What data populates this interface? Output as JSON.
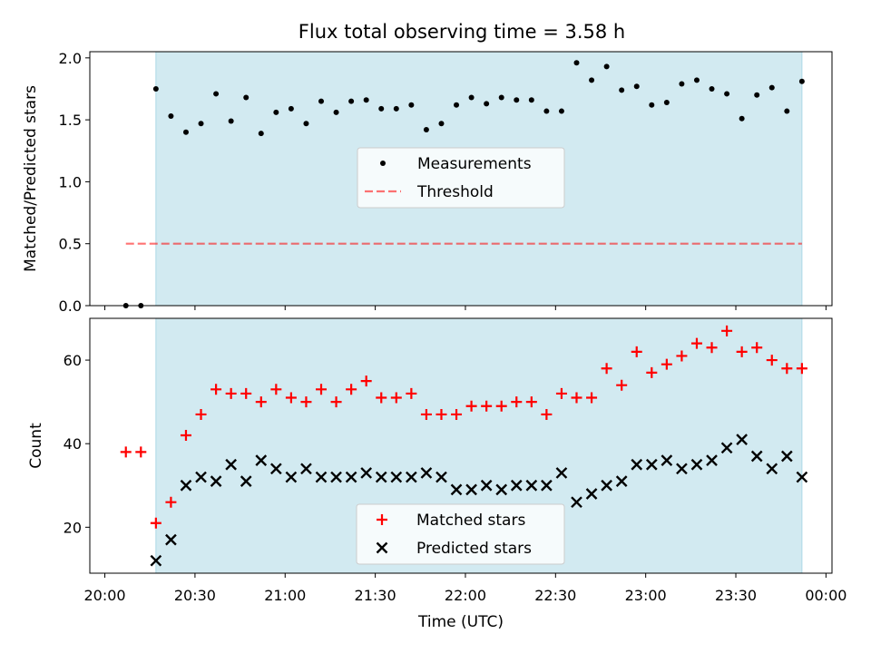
{
  "title": "Flux total observing time = 3.58 h",
  "colors": {
    "shade": "#add8e6",
    "matched": "#ff0000",
    "predicted": "#000000",
    "threshold": "#ff0000",
    "measurements": "#000000"
  },
  "chart_data": [
    {
      "type": "scatter",
      "ylabel": "Matched/Predicted stars",
      "ylim": [
        0,
        2.05
      ],
      "yticks": [
        0.0,
        0.5,
        1.0,
        1.5,
        2.0
      ],
      "ytick_labels": [
        "0.0",
        "0.5",
        "1.0",
        "1.5",
        "2.0"
      ],
      "shaded_span": [
        "20:17",
        "23:52"
      ],
      "legend": {
        "placement": "center",
        "entries": [
          "Measurements",
          "Threshold"
        ]
      },
      "threshold": {
        "name": "Threshold",
        "y": 0.5,
        "x_start": "20:07",
        "x_end": "23:52"
      },
      "series": [
        {
          "name": "Measurements",
          "x": [
            "20:07",
            "20:12",
            "20:17",
            "20:22",
            "20:27",
            "20:32",
            "20:37",
            "20:42",
            "20:47",
            "20:52",
            "20:57",
            "21:02",
            "21:07",
            "21:12",
            "21:17",
            "21:22",
            "21:27",
            "21:32",
            "21:37",
            "21:42",
            "21:47",
            "21:52",
            "21:57",
            "22:02",
            "22:07",
            "22:12",
            "22:17",
            "22:22",
            "22:27",
            "22:32",
            "22:37",
            "22:42",
            "22:47",
            "22:52",
            "22:57",
            "23:02",
            "23:07",
            "23:12",
            "23:17",
            "23:22",
            "23:27",
            "23:32",
            "23:37",
            "23:42",
            "23:47",
            "23:52"
          ],
          "y": [
            0.0,
            0.0,
            1.75,
            1.53,
            1.4,
            1.47,
            1.71,
            1.49,
            1.68,
            1.39,
            1.56,
            1.59,
            1.47,
            1.65,
            1.56,
            1.65,
            1.66,
            1.59,
            1.59,
            1.62,
            1.42,
            1.47,
            1.62,
            1.68,
            1.63,
            1.68,
            1.66,
            1.66,
            1.57,
            1.57,
            1.96,
            1.82,
            1.93,
            1.74,
            1.77,
            1.62,
            1.64,
            1.79,
            1.82,
            1.75,
            1.71,
            1.51,
            1.7,
            1.76,
            1.57,
            1.81
          ]
        }
      ]
    },
    {
      "type": "scatter",
      "title": "",
      "xlabel": "Time (UTC)",
      "ylabel": "Count",
      "ylim": [
        9,
        70
      ],
      "yticks": [
        20,
        40,
        60
      ],
      "ytick_labels": [
        "20",
        "40",
        "60"
      ],
      "xlim": [
        "19:55",
        "00:02"
      ],
      "xticks": [
        "20:00",
        "20:30",
        "21:00",
        "21:30",
        "22:00",
        "22:30",
        "23:00",
        "23:30",
        "00:00"
      ],
      "xtick_labels": [
        "20:00",
        "20:30",
        "21:00",
        "21:30",
        "22:00",
        "22:30",
        "23:00",
        "23:30",
        "00:00"
      ],
      "shaded_span": [
        "20:17",
        "23:52"
      ],
      "legend": {
        "placement": "lower center",
        "entries": [
          "Matched stars",
          "Predicted stars"
        ]
      },
      "series": [
        {
          "name": "Matched stars",
          "marker": "+",
          "x": [
            "20:07",
            "20:12",
            "20:17",
            "20:22",
            "20:27",
            "20:32",
            "20:37",
            "20:42",
            "20:47",
            "20:52",
            "20:57",
            "21:02",
            "21:07",
            "21:12",
            "21:17",
            "21:22",
            "21:27",
            "21:32",
            "21:37",
            "21:42",
            "21:47",
            "21:52",
            "21:57",
            "22:02",
            "22:07",
            "22:12",
            "22:17",
            "22:22",
            "22:27",
            "22:32",
            "22:37",
            "22:42",
            "22:47",
            "22:52",
            "22:57",
            "23:02",
            "23:07",
            "23:12",
            "23:17",
            "23:22",
            "23:27",
            "23:32",
            "23:37",
            "23:42",
            "23:47",
            "23:52"
          ],
          "y": [
            38,
            38,
            21,
            26,
            42,
            47,
            53,
            52,
            52,
            50,
            53,
            51,
            50,
            53,
            50,
            53,
            55,
            51,
            51,
            52,
            47,
            47,
            47,
            49,
            49,
            49,
            50,
            50,
            47,
            52,
            51,
            51,
            58,
            54,
            62,
            57,
            59,
            61,
            64,
            63,
            67,
            62,
            63,
            60,
            58,
            58
          ]
        },
        {
          "name": "Predicted stars",
          "marker": "x",
          "x": [
            "20:17",
            "20:22",
            "20:27",
            "20:32",
            "20:37",
            "20:42",
            "20:47",
            "20:52",
            "20:57",
            "21:02",
            "21:07",
            "21:12",
            "21:17",
            "21:22",
            "21:27",
            "21:32",
            "21:37",
            "21:42",
            "21:47",
            "21:52",
            "21:57",
            "22:02",
            "22:07",
            "22:12",
            "22:17",
            "22:22",
            "22:27",
            "22:32",
            "22:37",
            "22:42",
            "22:47",
            "22:52",
            "22:57",
            "23:02",
            "23:07",
            "23:12",
            "23:17",
            "23:22",
            "23:27",
            "23:32",
            "23:37",
            "23:42",
            "23:47",
            "23:52"
          ],
          "y": [
            12,
            17,
            30,
            32,
            31,
            35,
            31,
            36,
            34,
            32,
            34,
            32,
            32,
            32,
            33,
            32,
            32,
            32,
            33,
            32,
            29,
            29,
            30,
            29,
            30,
            30,
            30,
            33,
            26,
            28,
            30,
            31,
            35,
            35,
            36,
            34,
            35,
            36,
            39,
            41,
            37,
            34,
            37,
            32
          ]
        }
      ]
    }
  ]
}
